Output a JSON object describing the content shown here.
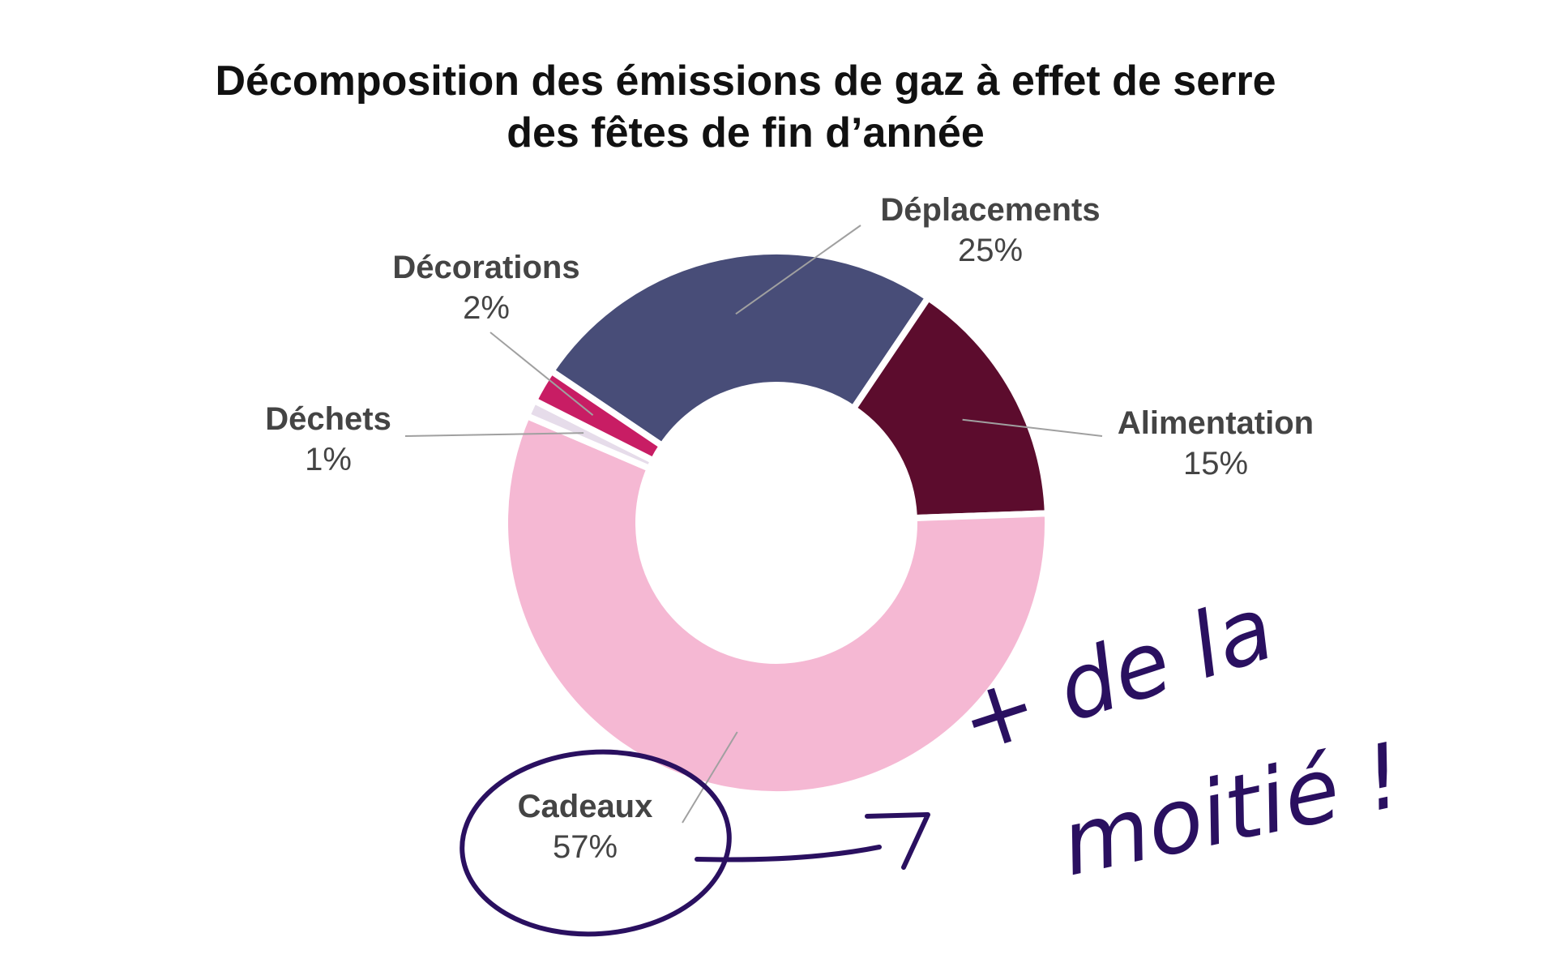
{
  "chart_data": {
    "type": "pie",
    "variant": "donut",
    "title_lines": [
      "Décomposition des émissions de gaz à effet de serre",
      "des fêtes de fin d’année"
    ],
    "slices": [
      {
        "label": "Déplacements",
        "value": 25,
        "value_label": "25%",
        "color": "#484d78"
      },
      {
        "label": "Alimentation",
        "value": 15,
        "value_label": "15%",
        "color": "#5c0c2d"
      },
      {
        "label": "Cadeaux",
        "value": 57,
        "value_label": "57%",
        "color": "#f5b8d3"
      },
      {
        "label": "Déchets",
        "value": 1,
        "value_label": "1%",
        "color": "#e6dcea"
      },
      {
        "label": "Décorations",
        "value": 2,
        "value_label": "2%",
        "color": "#c81d64"
      }
    ],
    "legend": "labels-outside-with-leader-lines"
  },
  "annotation": {
    "handwritten_note_line1": "+ de la",
    "handwritten_note_line2": "moitié !",
    "ink_color": "#2a1060"
  }
}
